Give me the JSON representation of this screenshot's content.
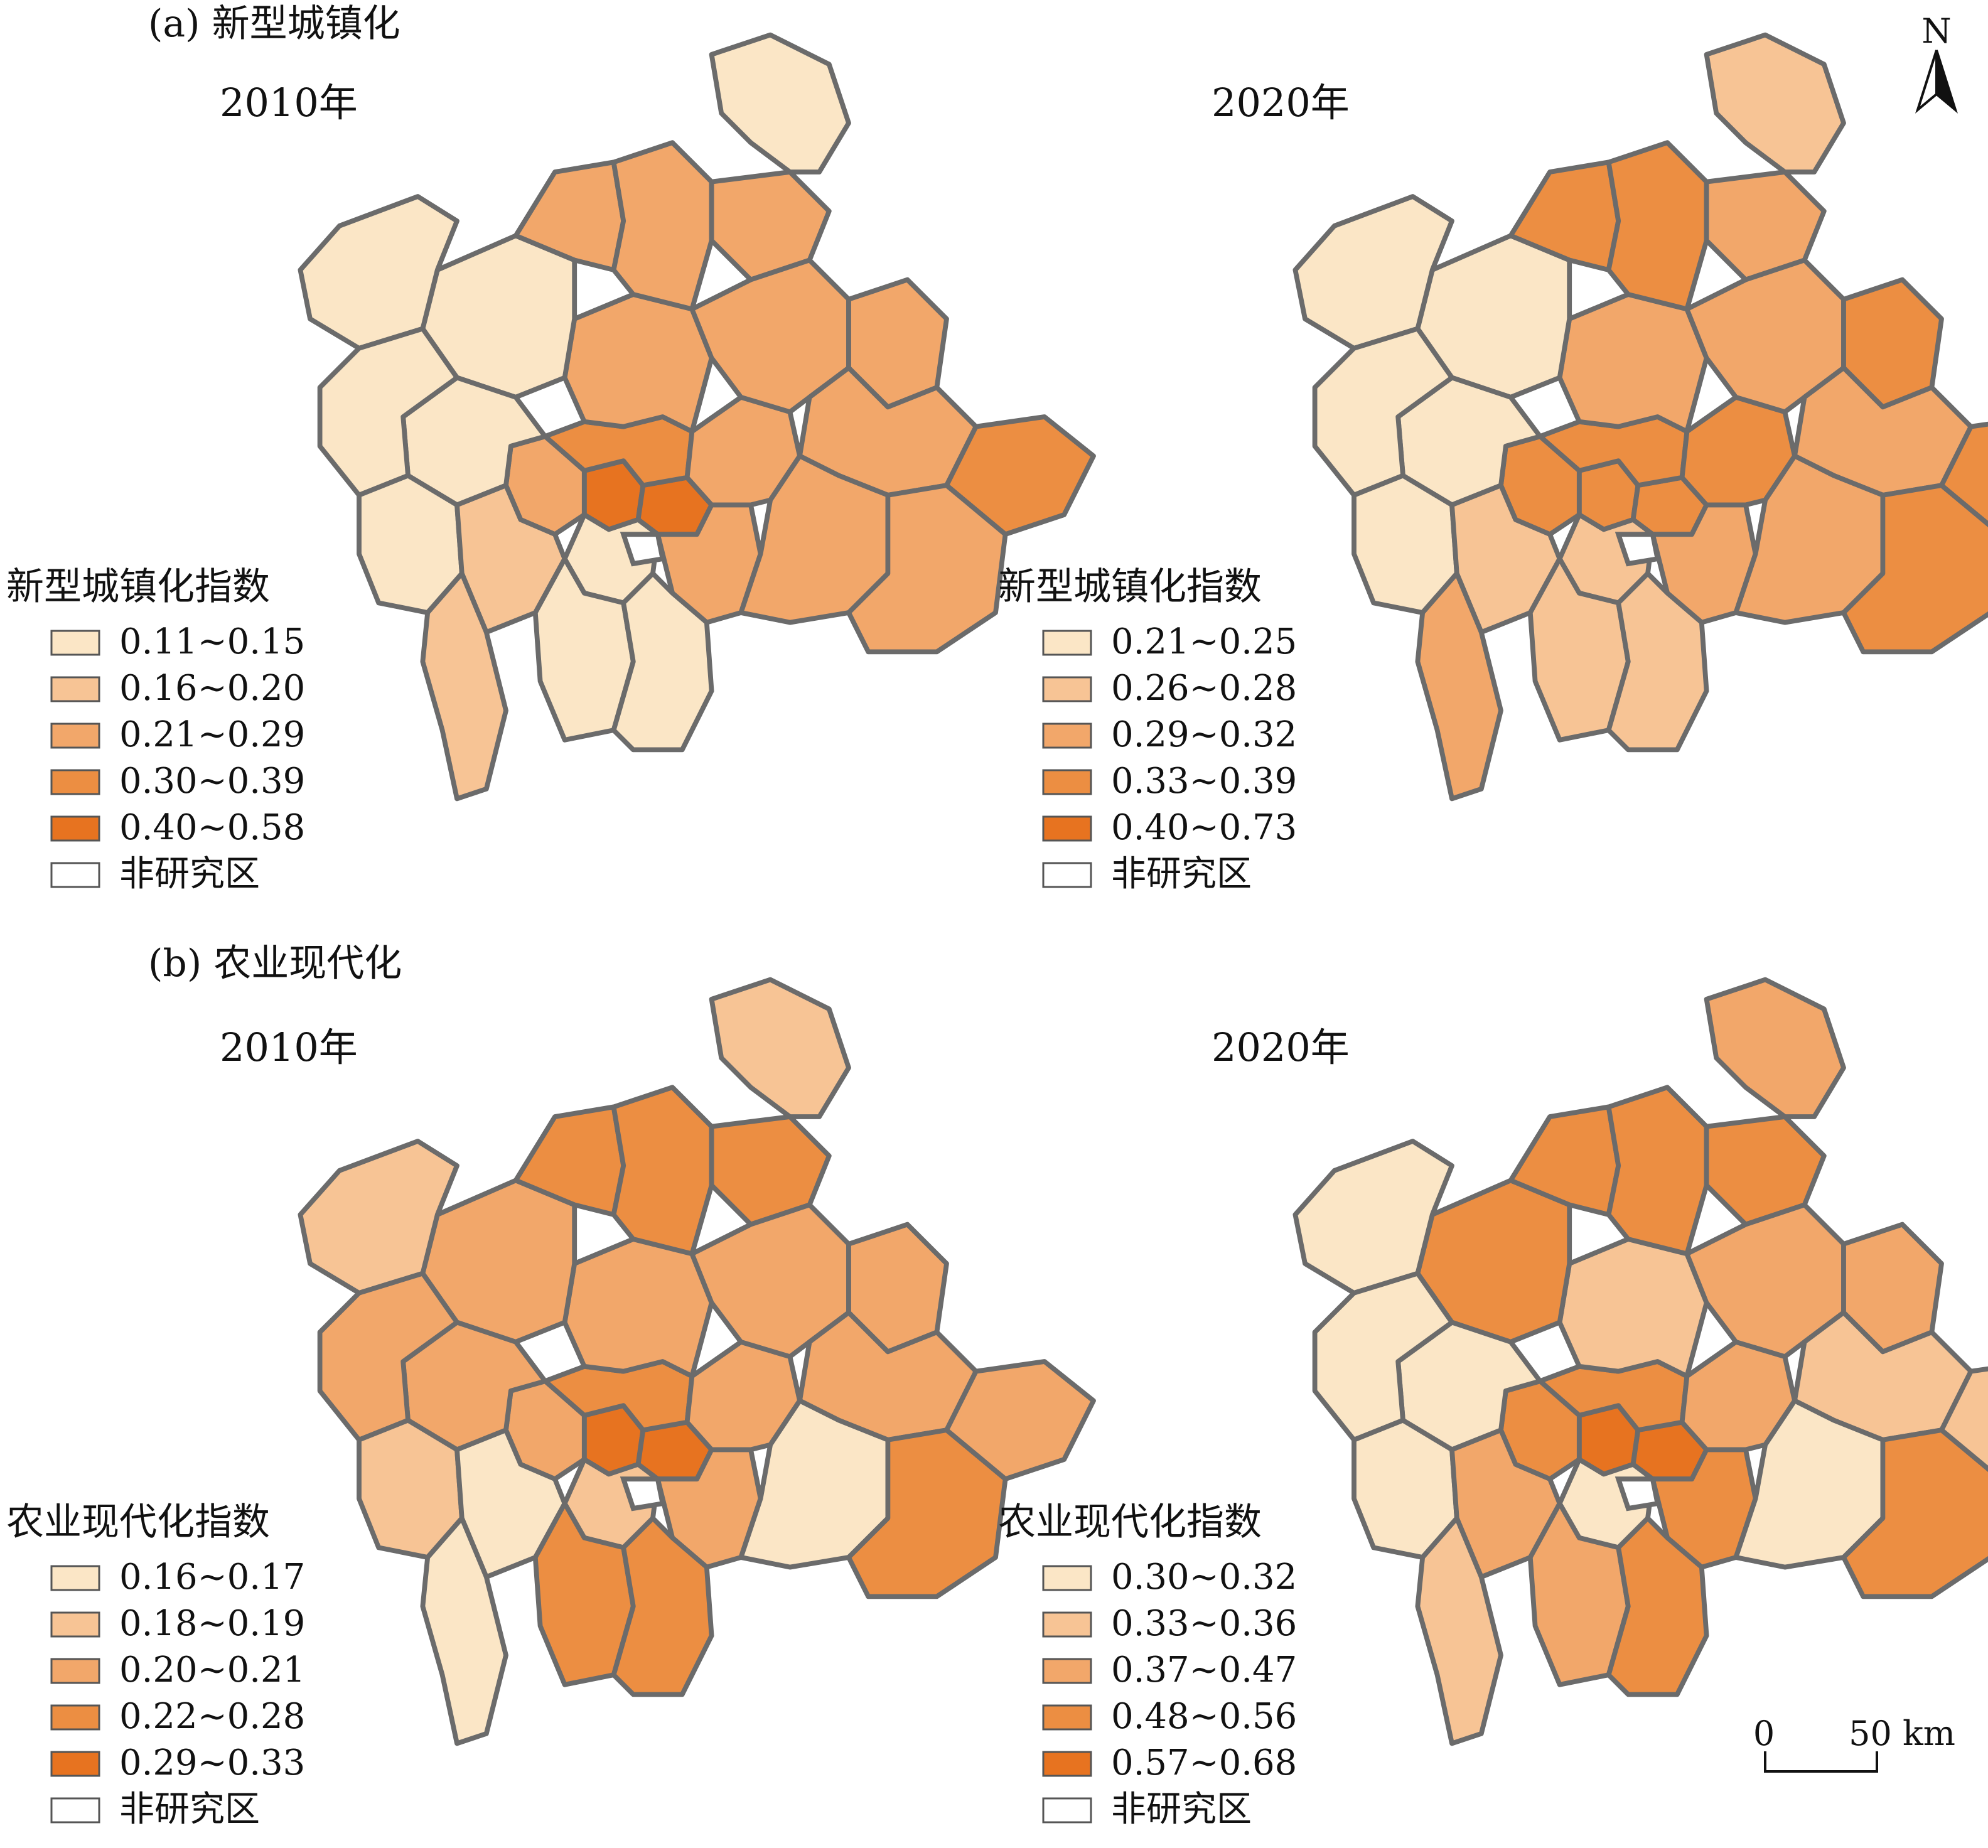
{
  "colors": {
    "c1": "#fbe6c6",
    "c2": "#f7c495",
    "c3": "#f2a76a",
    "c4": "#ec8e42",
    "c5": "#e77320",
    "none": "#ffffff",
    "border": "#6b6b6b"
  },
  "north_label": "N",
  "scale_bar": {
    "zero": "0",
    "label": "50 km"
  },
  "panels": [
    {
      "id": "a2010",
      "panel_title": "(a) 新型城镇化",
      "year": "2010年",
      "legend_title": "新型城镇化指数",
      "classes": [
        "0.11~0.15",
        "0.16~0.20",
        "0.21~0.29",
        "0.30~0.39",
        "0.40~0.58"
      ],
      "no_data": "非研究区",
      "region_classes": [
        5,
        5,
        4,
        3,
        1,
        3,
        3,
        3,
        1,
        1,
        1,
        1,
        1,
        2,
        2,
        1,
        1,
        3,
        3,
        3,
        1,
        3,
        3,
        3,
        4,
        3,
        3
      ]
    },
    {
      "id": "a2020",
      "panel_title": "",
      "year": "2020年",
      "legend_title": "新型城镇化指数",
      "classes": [
        "0.21~0.25",
        "0.26~0.28",
        "0.29~0.32",
        "0.33~0.39",
        "0.40~0.73"
      ],
      "no_data": "非研究区",
      "region_classes": [
        4,
        4,
        4,
        4,
        2,
        3,
        4,
        3,
        1,
        1,
        1,
        1,
        1,
        2,
        3,
        2,
        2,
        4,
        4,
        3,
        2,
        3,
        4,
        3,
        4,
        3,
        4
      ]
    },
    {
      "id": "b2010",
      "panel_title": "(b) 农业现代化",
      "year": "2010年",
      "legend_title": "农业现代化指数",
      "classes": [
        "0.16~0.17",
        "0.18~0.19",
        "0.20~0.21",
        "0.22~0.28",
        "0.29~0.33"
      ],
      "no_data": "非研究区",
      "region_classes": [
        5,
        5,
        4,
        3,
        2,
        3,
        3,
        3,
        3,
        2,
        3,
        3,
        2,
        1,
        1,
        4,
        4,
        4,
        4,
        4,
        2,
        3,
        3,
        3,
        3,
        1,
        4
      ]
    },
    {
      "id": "b2020",
      "panel_title": "",
      "year": "2020年",
      "legend_title": "农业现代化指数",
      "classes": [
        "0.30~0.32",
        "0.33~0.36",
        "0.37~0.47",
        "0.48~0.56",
        "0.57~0.68"
      ],
      "no_data": "非研究区",
      "region_classes": [
        5,
        5,
        4,
        4,
        1,
        4,
        3,
        2,
        4,
        1,
        1,
        1,
        1,
        3,
        2,
        3,
        4,
        4,
        4,
        4,
        3,
        3,
        3,
        2,
        2,
        1,
        4
      ]
    }
  ]
}
